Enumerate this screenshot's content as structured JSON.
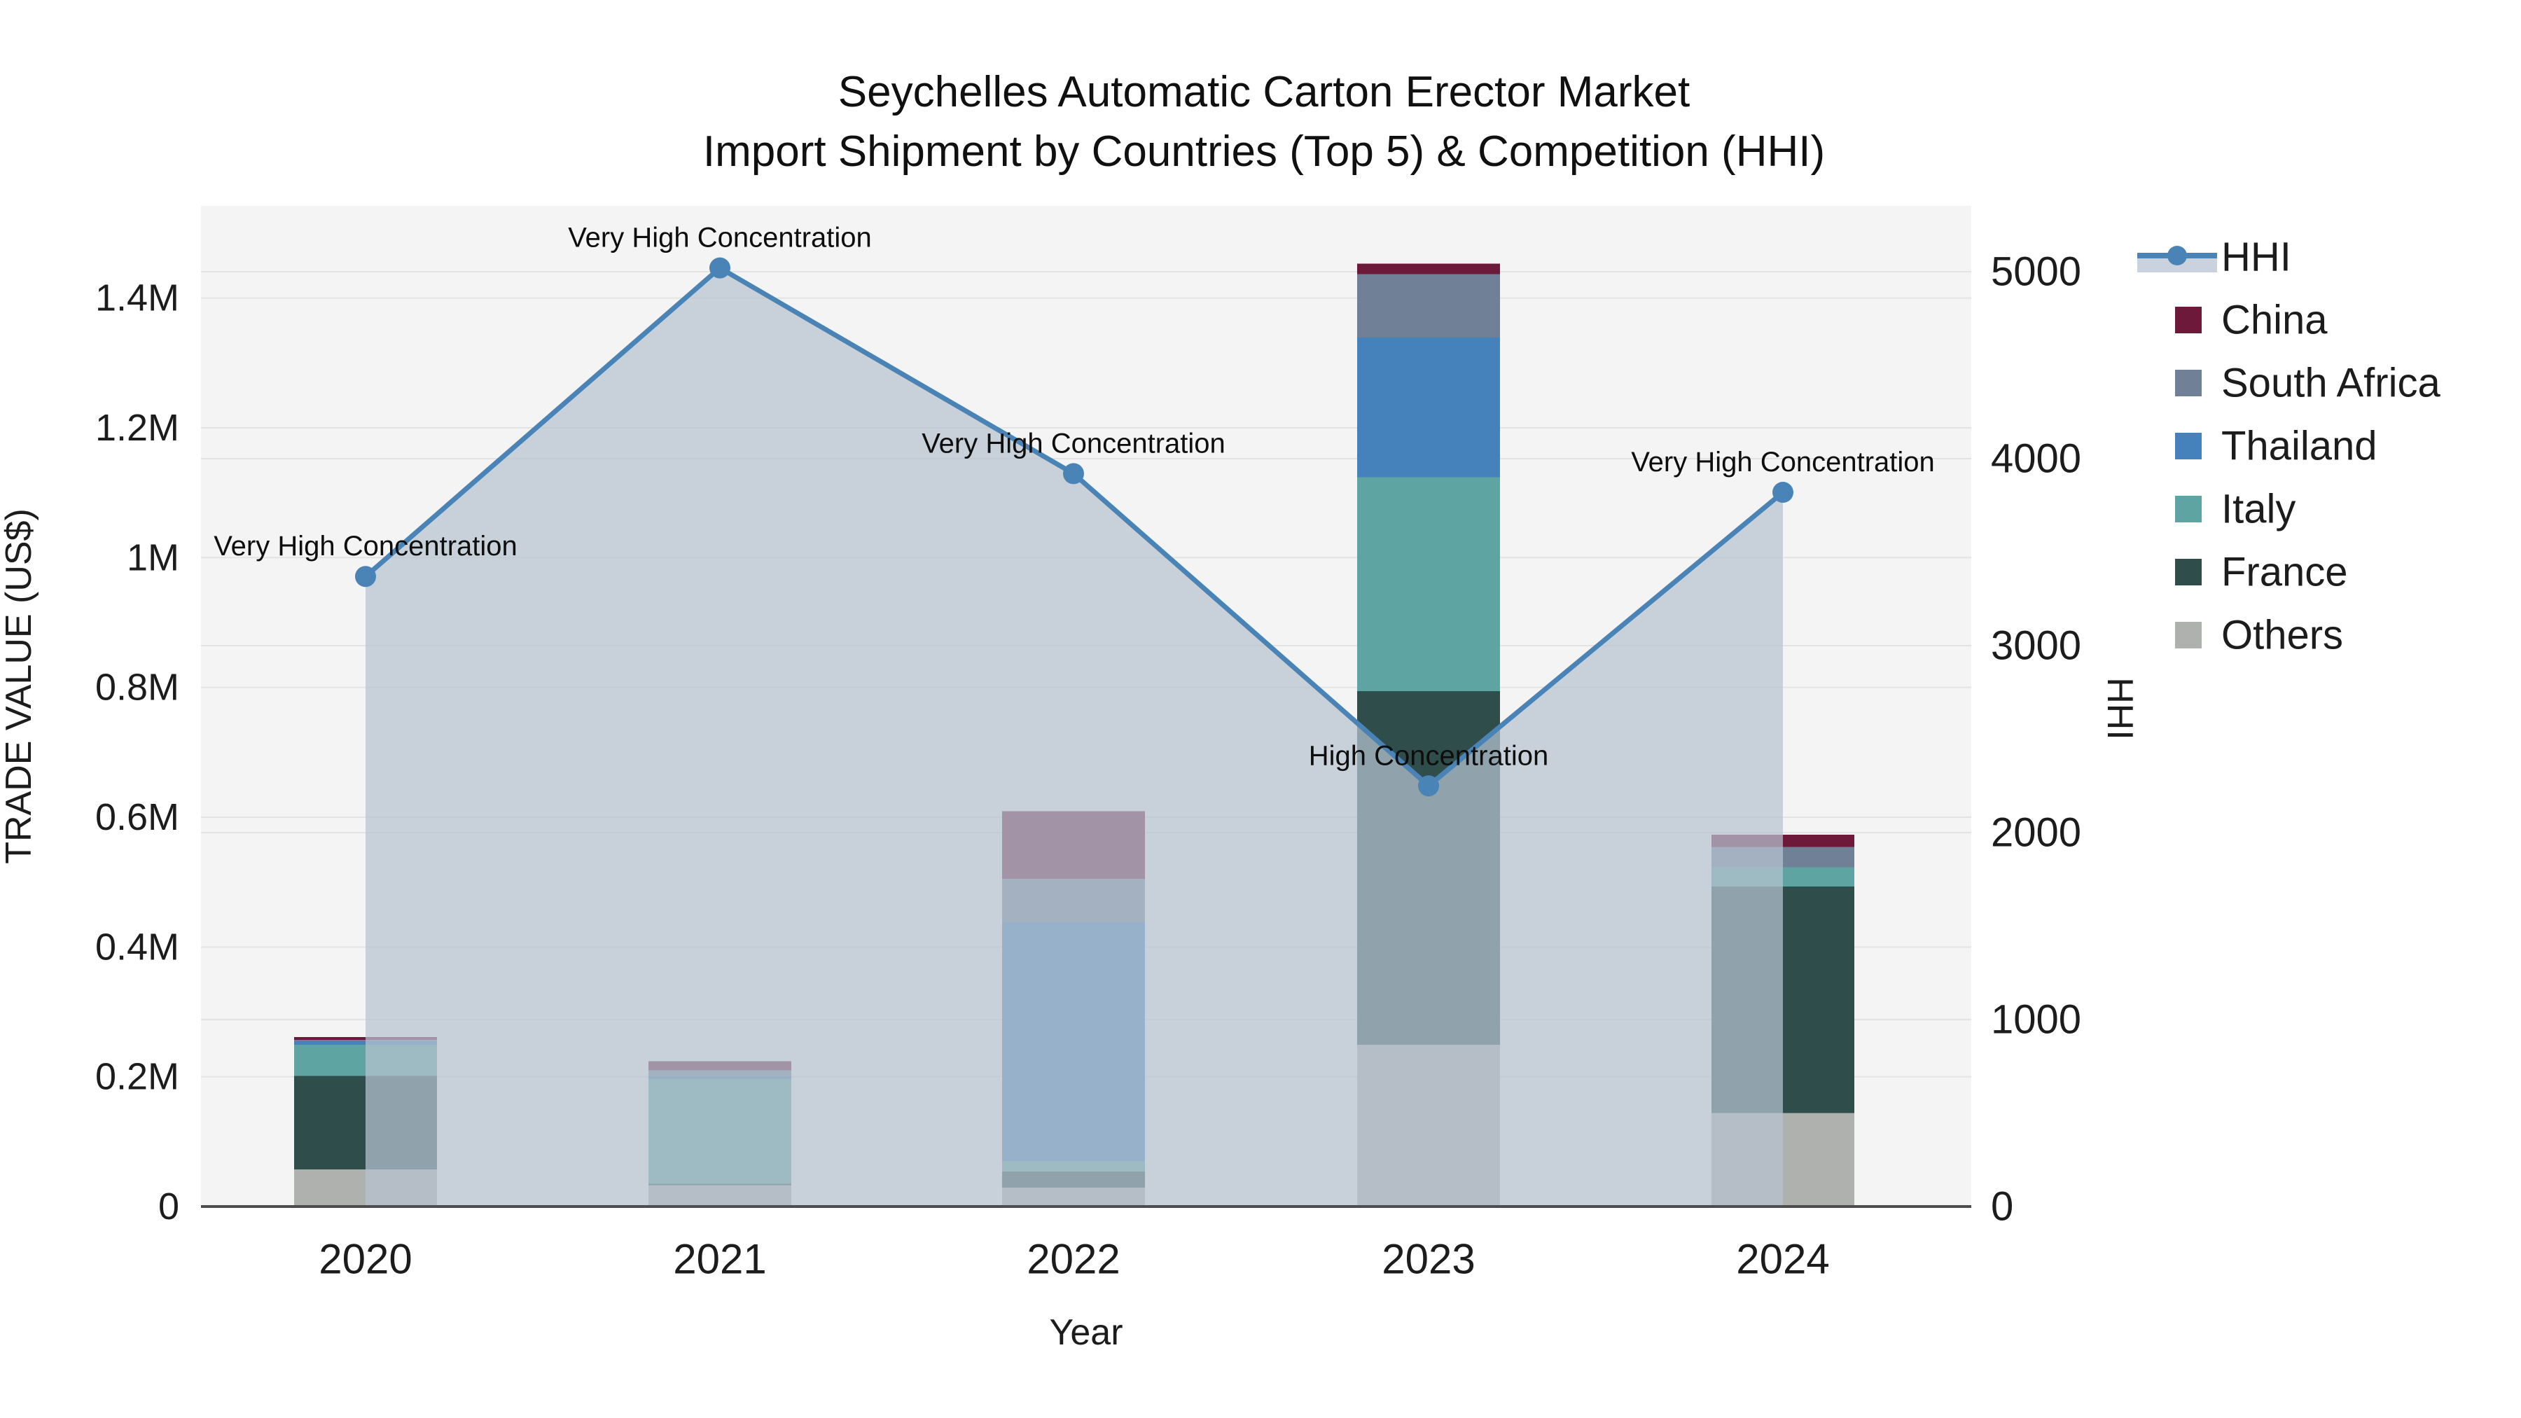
{
  "title": {
    "line1": "Seychelles Automatic Carton Erector Market",
    "line2": "Import Shipment by Countries (Top 5) & Competition (HHI)"
  },
  "axes": {
    "y_left": {
      "title": "TRADE VALUE (US$)",
      "ticks": [
        {
          "label": "0",
          "value": 0
        },
        {
          "label": "0.2M",
          "value": 200000
        },
        {
          "label": "0.4M",
          "value": 400000
        },
        {
          "label": "0.6M",
          "value": 600000
        },
        {
          "label": "0.8M",
          "value": 800000
        },
        {
          "label": "1M",
          "value": 1000000
        },
        {
          "label": "1.2M",
          "value": 1200000
        },
        {
          "label": "1.4M",
          "value": 1400000
        }
      ]
    },
    "y_right": {
      "title": "HHI",
      "ticks": [
        {
          "label": "0",
          "value": 0
        },
        {
          "label": "1000",
          "value": 1000
        },
        {
          "label": "2000",
          "value": 2000
        },
        {
          "label": "3000",
          "value": 3000
        },
        {
          "label": "4000",
          "value": 4000
        },
        {
          "label": "5000",
          "value": 5000
        }
      ]
    },
    "x": {
      "title": "Year",
      "categories": [
        "2020",
        "2021",
        "2022",
        "2023",
        "2024"
      ]
    }
  },
  "legend": {
    "items": [
      {
        "label": "HHI",
        "type": "line",
        "color": "#4a83b6"
      },
      {
        "label": "China",
        "type": "swatch",
        "color": "#6d1a3a"
      },
      {
        "label": "South Africa",
        "type": "swatch",
        "color": "#708096"
      },
      {
        "label": "Thailand",
        "type": "swatch",
        "color": "#4581ba"
      },
      {
        "label": "Italy",
        "type": "swatch",
        "color": "#5da4a2"
      },
      {
        "label": "France",
        "type": "swatch",
        "color": "#2e4d4b"
      },
      {
        "label": "Others",
        "type": "swatch",
        "color": "#afb1af"
      }
    ]
  },
  "annotations": [
    {
      "year": "2020",
      "text": "Very High Concentration"
    },
    {
      "year": "2021",
      "text": "Very High Concentration"
    },
    {
      "year": "2022",
      "text": "Very High Concentration"
    },
    {
      "year": "2023",
      "text": "High Concentration"
    },
    {
      "year": "2024",
      "text": "Very High Concentration"
    }
  ],
  "chart_data": {
    "type": "combo-stacked-bar-line",
    "title": "Seychelles Automatic Carton Erector Market — Import Shipment by Countries (Top 5) & Competition (HHI)",
    "categories": [
      "2020",
      "2021",
      "2022",
      "2023",
      "2024"
    ],
    "xlabel": "Year",
    "ylabel_left": "TRADE VALUE (US$)",
    "ylabel_right": "HHI",
    "y_left_range": [
      0,
      1540000
    ],
    "y_right_range": [
      0,
      5350
    ],
    "grid": true,
    "legend_position": "right",
    "bar_stack_order_bottom_to_top": [
      "Others",
      "France",
      "Italy",
      "Thailand",
      "South Africa",
      "China"
    ],
    "series": [
      {
        "name": "Others",
        "color": "#afb1af",
        "values": [
          57000,
          33000,
          29000,
          249000,
          144000
        ]
      },
      {
        "name": "France",
        "color": "#2e4d4b",
        "values": [
          144000,
          2000,
          25000,
          545000,
          349000
        ]
      },
      {
        "name": "Italy",
        "color": "#5da4a2",
        "values": [
          48000,
          162000,
          16000,
          330000,
          30000
        ]
      },
      {
        "name": "Thailand",
        "color": "#4581ba",
        "values": [
          5400,
          3000,
          368000,
          215000,
          0
        ]
      },
      {
        "name": "South Africa",
        "color": "#708096",
        "values": [
          2200,
          10000,
          67000,
          98000,
          31000
        ]
      },
      {
        "name": "China",
        "color": "#6d1a3a",
        "values": [
          4300,
          14000,
          104000,
          16000,
          19000
        ]
      }
    ],
    "bar_totals": [
      260900,
      224000,
      609000,
      1453000,
      573000
    ],
    "line_series": {
      "name": "HHI",
      "color": "#4a83b6",
      "values": [
        3370,
        5020,
        3920,
        2250,
        3820
      ],
      "area_fill": "rgba(183,195,208,0.72)"
    }
  },
  "colors": {
    "plot_background": "#f4f4f4",
    "page_background": "#ffffff",
    "gridline": "#e3e3e3",
    "axis_line": "#4d4d4d",
    "hhi_line": "#4a83b6",
    "hhi_area": "rgba(183,195,208,0.72)",
    "legend_area_band": "#c9d2dd"
  }
}
